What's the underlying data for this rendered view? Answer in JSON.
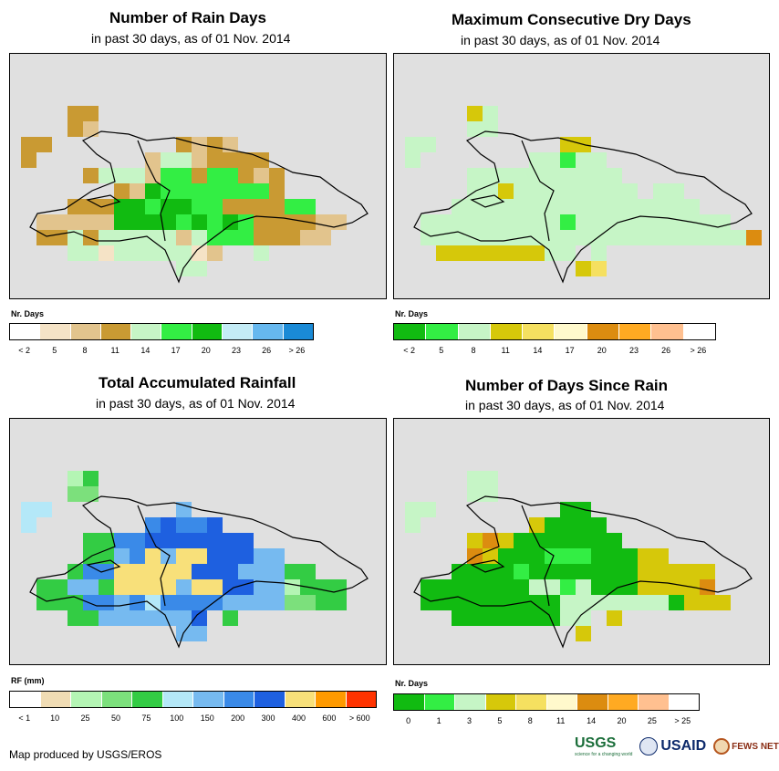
{
  "panels": [
    {
      "id": "rain-days",
      "title": "Number of Rain Days",
      "subtitle": "in past 30 days, as of 01 Nov. 2014",
      "legend_title": "Nr. Days",
      "legend_colors": [
        "#ffffff",
        "#f5e3c6",
        "#e2c48d",
        "#c99a33",
        "#c6f5c6",
        "#33ee44",
        "#11bb11",
        "#c4ecf6",
        "#66b8ef",
        "#1a8ad6"
      ],
      "legend_labels": [
        "< 2",
        "5",
        "8",
        "11",
        "14",
        "17",
        "20",
        "23",
        "26",
        "> 26"
      ],
      "legend_label_pos": "center"
    },
    {
      "id": "dry-days",
      "title": "Maximum Consecutive Dry Days",
      "subtitle": "in past 30 days, as of 01 Nov. 2014",
      "legend_title": "Nr. Days",
      "legend_colors": [
        "#11bb11",
        "#33ee44",
        "#c6f5c6",
        "#d6c80a",
        "#f5e060",
        "#fff9cc",
        "#dc8c10",
        "#ffaa22",
        "#ffc090",
        "#ffffff"
      ],
      "legend_labels": [
        "< 2",
        "5",
        "8",
        "11",
        "14",
        "17",
        "20",
        "23",
        "26",
        "> 26"
      ],
      "legend_label_pos": "center"
    },
    {
      "id": "rainfall",
      "title": "Total Accumulated Rainfall",
      "subtitle": "in past 30 days, as of 01 Nov. 2014",
      "legend_title": "RF (mm)",
      "legend_colors": [
        "#ffffff",
        "#f0dcb4",
        "#b4f5b4",
        "#7ce07c",
        "#33cc44",
        "#b4e8f8",
        "#76baf0",
        "#3a8ae8",
        "#1e60e0",
        "#f8e07a",
        "#ff9a00",
        "#ff3300"
      ],
      "legend_labels": [
        "< 1",
        "10",
        "25",
        "50",
        "75",
        "100",
        "150",
        "200",
        "300",
        "400",
        "600",
        "> 600"
      ],
      "legend_label_pos": "center"
    },
    {
      "id": "days-since-rain",
      "title": "Number of Days Since Rain",
      "subtitle": "in past 30 days, as of 01 Nov. 2014",
      "legend_title": "Nr. Days",
      "legend_colors": [
        "#11bb11",
        "#33ee44",
        "#c6f5c6",
        "#d6c80a",
        "#f5e060",
        "#fff9cc",
        "#dc8c10",
        "#ffaa22",
        "#ffc090",
        "#ffffff"
      ],
      "legend_labels": [
        "0",
        "1",
        "3",
        "5",
        "8",
        "11",
        "14",
        "20",
        "25",
        "> 25"
      ],
      "legend_label_pos": "center"
    }
  ],
  "footer": {
    "credit": "Map produced by USGS/EROS"
  },
  "logos": {
    "usgs": "USGS",
    "usgs_tag": "science for a changing world",
    "usaid": "USAID",
    "fews": "FEWS NET"
  }
}
